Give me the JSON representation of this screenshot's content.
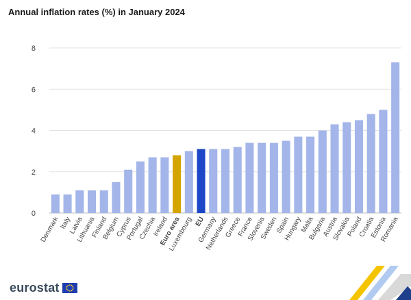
{
  "title": "Annual inflation rates (%) in January 2024",
  "logo_text": "eurostat",
  "colors": {
    "bar": "#a3b5e9",
    "euro_area": "#d4a500",
    "eu": "#1e47c8",
    "grid": "#e3e3e3",
    "axis": "#bbbbbb"
  },
  "chart_data": {
    "type": "bar",
    "title": "Annual inflation rates (%) in January 2024",
    "xlabel": "",
    "ylabel": "",
    "ylim": [
      0,
      8
    ],
    "yticks": [
      0,
      2,
      4,
      6,
      8
    ],
    "grid": true,
    "categories": [
      "Denmark",
      "Italy",
      "Latvia",
      "Lithuania",
      "Finland",
      "Belgium",
      "Cyprus",
      "Portugal",
      "Czechia",
      "Ireland",
      "Euro area",
      "Luxembourg",
      "EU",
      "Germany",
      "Netherlands",
      "Greece",
      "France",
      "Slovenia",
      "Sweden",
      "Spain",
      "Hungary",
      "Malta",
      "Bulgaria",
      "Austria",
      "Slovakia",
      "Poland",
      "Croatia",
      "Estonia",
      "Romania"
    ],
    "values": [
      0.9,
      0.9,
      1.1,
      1.1,
      1.1,
      1.5,
      2.1,
      2.5,
      2.7,
      2.7,
      2.8,
      3.0,
      3.1,
      3.1,
      3.1,
      3.2,
      3.4,
      3.4,
      3.4,
      3.5,
      3.7,
      3.7,
      4.0,
      4.3,
      4.4,
      4.5,
      4.8,
      5.0,
      7.3
    ],
    "highlight": {
      "Euro area": "euro_area",
      "EU": "eu"
    },
    "bold_categories": [
      "Euro area",
      "EU"
    ]
  }
}
